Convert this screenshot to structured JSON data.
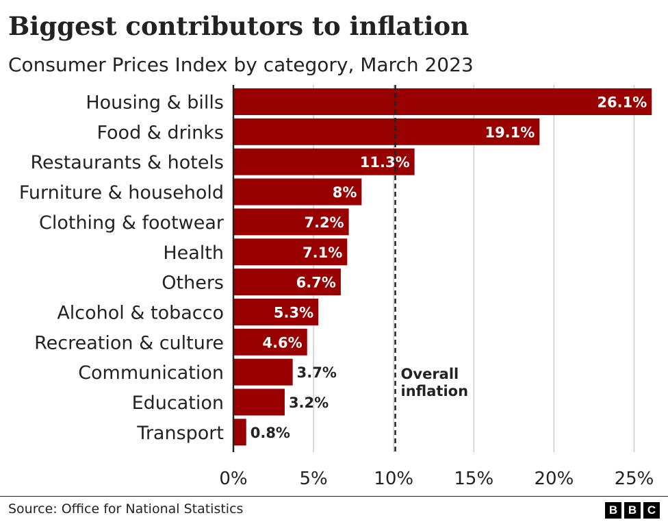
{
  "chart_data": {
    "type": "bar",
    "orientation": "horizontal",
    "title": "Biggest contributors to inflation",
    "subtitle": "Consumer Prices Index by category, March 2023",
    "categories": [
      "Housing & bills",
      "Food & drinks",
      "Restaurants & hotels",
      "Furniture & household",
      "Clothing & footwear",
      "Health",
      "Others",
      "Alcohol & tobacco",
      "Recreation & culture",
      "Communication",
      "Education",
      "Transport"
    ],
    "values": [
      26.1,
      19.1,
      11.3,
      8,
      7.2,
      7.1,
      6.7,
      5.3,
      4.6,
      3.7,
      3.2,
      0.8
    ],
    "value_labels": [
      "26.1%",
      "19.1%",
      "11.3%",
      "8%",
      "7.2%",
      "7.1%",
      "6.7%",
      "5.3%",
      "4.6%",
      "3.7%",
      "3.2%",
      "0.8%"
    ],
    "x_ticks": [
      0,
      5,
      10,
      15,
      20,
      25
    ],
    "x_tick_labels": [
      "0%",
      "5%",
      "10%",
      "15%",
      "20%",
      "25%"
    ],
    "xlim": [
      0,
      26.1
    ],
    "reference_line": {
      "value": 10.1,
      "label_lines": [
        "Overall",
        "inflation"
      ]
    },
    "grid": true,
    "colors": {
      "bar": "#990000",
      "grid": "#cccccc",
      "axis": "#222222",
      "reference": "#222222"
    }
  },
  "footer": {
    "source": "Source: Office for National Statistics",
    "logo_letters": [
      "B",
      "B",
      "C"
    ]
  }
}
